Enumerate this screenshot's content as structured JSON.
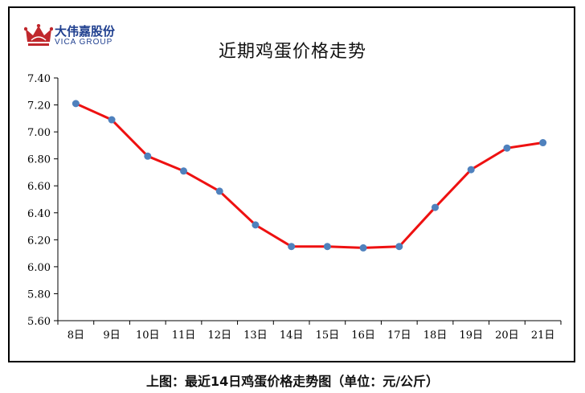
{
  "logo": {
    "name_cn": "大伟嘉股份",
    "name_en": "VICA GROUP",
    "icon": "crown-icon",
    "colors": {
      "crown": "#c0282d",
      "text": "#1f3f8f"
    }
  },
  "caption": "上图：最近14日鸡蛋价格走势图（单位：元/公斤）",
  "chart_data": {
    "type": "line",
    "title": "近期鸡蛋价格走势",
    "xlabel": "",
    "ylabel": "",
    "categories": [
      "8日",
      "9日",
      "10日",
      "11日",
      "12日",
      "13日",
      "14日",
      "15日",
      "16日",
      "17日",
      "18日",
      "19日",
      "20日",
      "21日"
    ],
    "series": [
      {
        "name": "",
        "values": [
          7.21,
          7.09,
          6.82,
          6.71,
          6.56,
          6.31,
          6.15,
          6.15,
          6.14,
          6.15,
          6.44,
          6.72,
          6.88,
          6.92
        ]
      }
    ],
    "ylim": [
      5.6,
      7.4
    ],
    "yticks": [
      "7.40",
      "7.20",
      "7.00",
      "6.80",
      "6.60",
      "6.40",
      "6.20",
      "6.00",
      "5.80",
      "5.60"
    ],
    "grid": false,
    "legend": "none",
    "colors": {
      "line": "#ee1111",
      "marker": "#4f81bd",
      "axis": "#000000"
    }
  }
}
